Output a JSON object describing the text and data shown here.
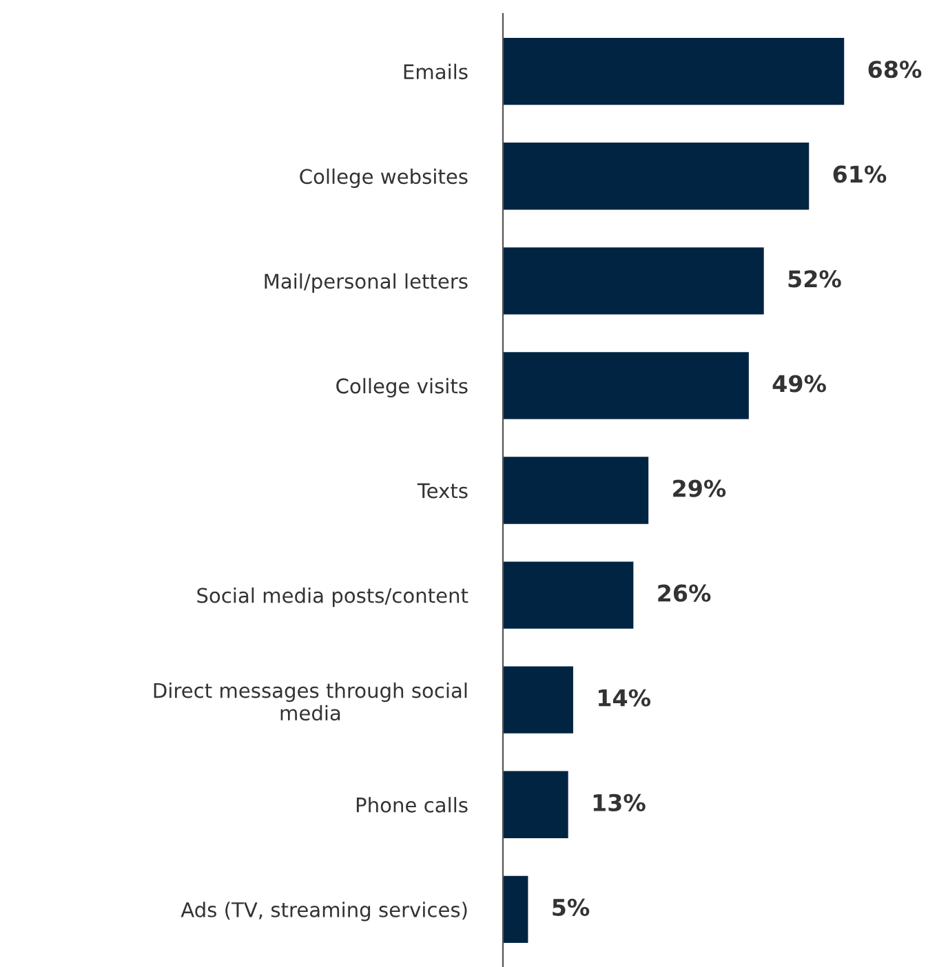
{
  "chart_data": {
    "type": "bar",
    "orientation": "horizontal",
    "categories": [
      "Emails",
      "College websites",
      "Mail/personal letters",
      "College visits",
      "Texts",
      "Social media posts/content",
      "Direct messages through social\nmedia",
      "Phone calls",
      "Ads (TV, streaming services)"
    ],
    "values": [
      68,
      61,
      52,
      49,
      29,
      26,
      14,
      13,
      5
    ],
    "value_labels": [
      "68%",
      "61%",
      "52%",
      "49%",
      "29%",
      "26%",
      "14%",
      "13%",
      "5%"
    ],
    "color": "#022443",
    "tick_labels": "y",
    "grid": false,
    "legend": false
  }
}
